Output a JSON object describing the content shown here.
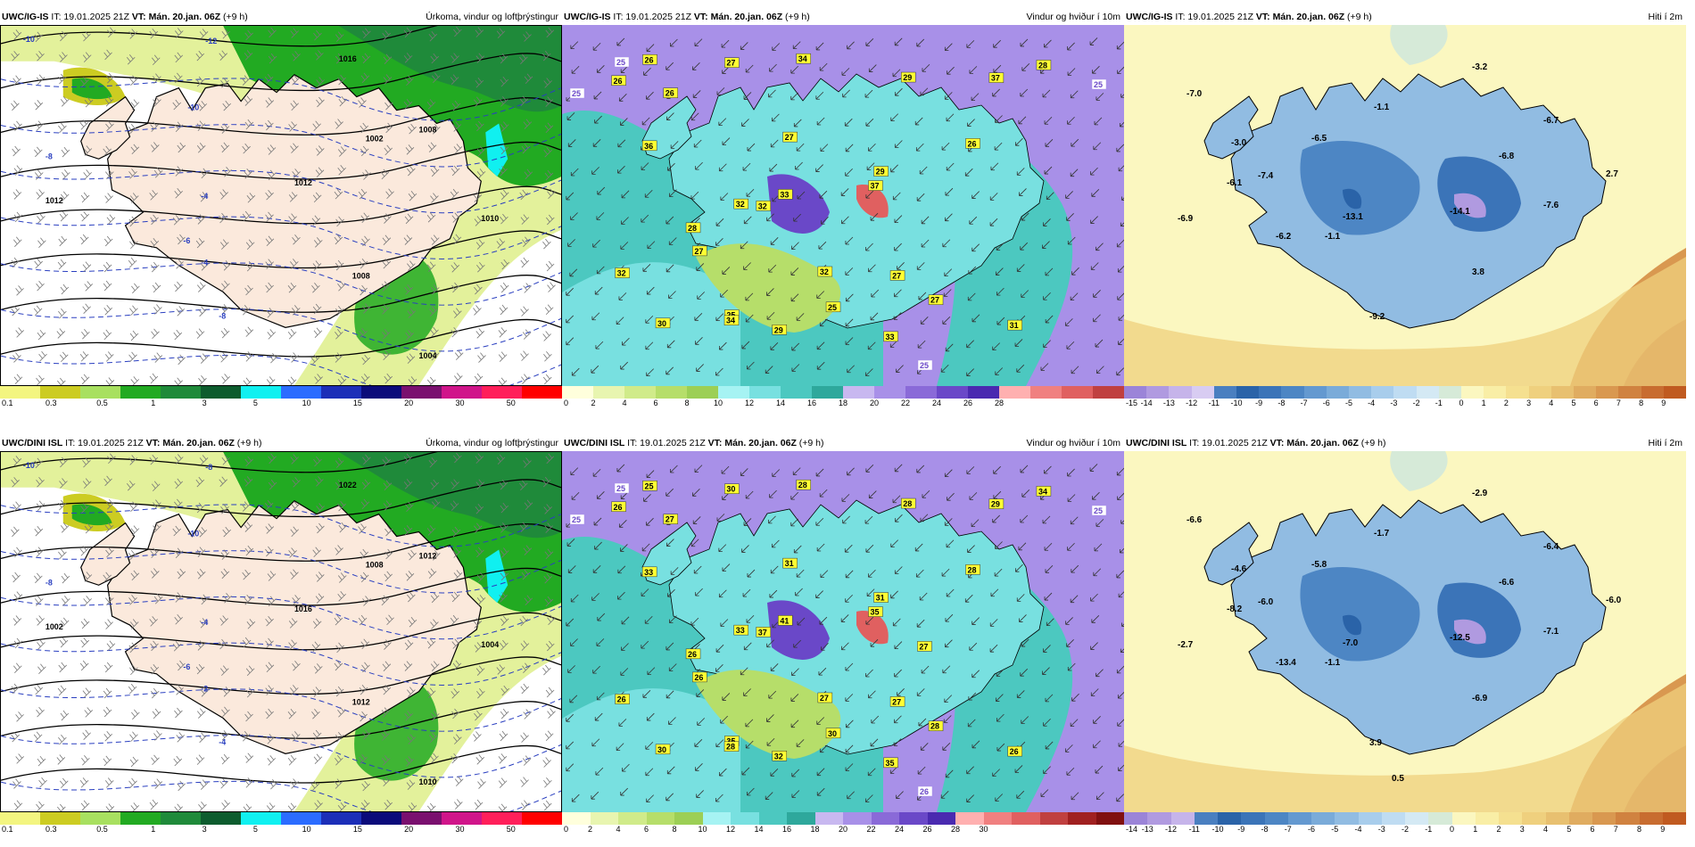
{
  "rows": [
    {
      "panels": [
        {
          "kind": "precip",
          "model": "UWC/IG-IS",
          "it_label": "IT: 19.01.2025 21Z",
          "vt_label": "VT: Mán. 20.jan. 06Z",
          "lead": "(+9 h)",
          "title": "Úrkoma, vindur og loftþrýstingur",
          "colors": [
            "#f3f580",
            "#cccc22",
            "#a8e060",
            "#22aa22",
            "#1f8a3a",
            "#0d5c2e",
            "#10f0f0",
            "#2b6cff",
            "#1c2fb8",
            "#0b0b7a",
            "#7a106f",
            "#d0158a",
            "#ff1f5a",
            "#ff0000"
          ],
          "ticks": [
            "0.1",
            "0.3",
            "0.5",
            "1",
            "3",
            "5",
            "10",
            "15",
            "20",
            "30",
            "50"
          ],
          "isobars": [
            "1016",
            "1012",
            "1008",
            "1004",
            "1002",
            "1010",
            "1012",
            "1008"
          ],
          "temps": [
            "-10",
            "-8",
            "-4",
            "-6",
            "-10",
            "-8",
            "-4",
            "-12"
          ]
        },
        {
          "kind": "wind",
          "model": "UWC/IG-IS",
          "it_label": "IT: 19.01.2025 21Z",
          "vt_label": "VT: Mán. 20.jan. 06Z",
          "lead": "(+9 h)",
          "title": "Vindur og hviður í 10m",
          "colors": [
            "#ffffdc",
            "#e8f5b0",
            "#d0eb8a",
            "#b6de6a",
            "#9ccf55",
            "#a6f3f3",
            "#78e0e0",
            "#4cc8c0",
            "#2ea89c",
            "#c8b8f0",
            "#a890e8",
            "#8a6ad8",
            "#6a48c8",
            "#4a2ab0",
            "#ffb0b0",
            "#f08080",
            "#e06060",
            "#c04040"
          ],
          "ticks": [
            "0",
            "2",
            "4",
            "6",
            "8",
            "10",
            "12",
            "14",
            "16",
            "18",
            "20",
            "22",
            "24",
            "26",
            "28"
          ],
          "gusts": [
            "29",
            "33",
            "25",
            "27",
            "27",
            "26",
            "32",
            "31",
            "34",
            "27",
            "37",
            "25",
            "33",
            "32",
            "29",
            "37",
            "36",
            "34",
            "32",
            "26",
            "27",
            "28",
            "29",
            "30",
            "26",
            "28",
            "32",
            "27",
            "26"
          ],
          "bands": [
            "25",
            "25",
            "25",
            "25"
          ]
        },
        {
          "kind": "temp",
          "model": "UWC/IG-IS",
          "it_label": "IT: 19.01.2025 21Z",
          "vt_label": "VT: Mán. 20.jan. 06Z",
          "lead": "(+9 h)",
          "title": "Hiti í 2m",
          "colors": [
            "#9b84d8",
            "#b09ae0",
            "#c6b4ea",
            "#d8ccf2",
            "#4a7fc0",
            "#2a63a8",
            "#3b74b8",
            "#4d86c4",
            "#6499d0",
            "#7aabd9",
            "#91bce2",
            "#a8cdec",
            "#bfdcf2",
            "#d4e9f4",
            "#d6ead8",
            "#fbf7c0",
            "#f9eea6",
            "#f5e090",
            "#efd07e",
            "#e8c070",
            "#e0ac60",
            "#d99850",
            "#d08240",
            "#c86c30",
            "#c05a20"
          ],
          "ticks": [
            "-15",
            "-14",
            "-13",
            "-12",
            "-11",
            "-10",
            "-9",
            "-8",
            "-7",
            "-6",
            "-5",
            "-4",
            "-3",
            "-2",
            "-1",
            "0",
            "1",
            "2",
            "3",
            "4",
            "5",
            "6",
            "7",
            "8",
            "9"
          ],
          "values": [
            "-7.0",
            "-3.0",
            "-6.5",
            "-1.1",
            "-3.2",
            "-6.7",
            "-6.8",
            "2.7",
            "-6.1",
            "-7.4",
            "-13.1",
            "-14.1",
            "-7.6",
            "-6.9",
            "-6.2",
            "-1.1",
            "3.8",
            "-9.2"
          ]
        }
      ]
    },
    {
      "panels": [
        {
          "kind": "precip",
          "model": "UWC/DINI ISL",
          "it_label": "IT: 19.01.2025 21Z",
          "vt_label": "VT: Mán. 20.jan. 06Z",
          "lead": "(+9 h)",
          "title": "Úrkoma, vindur og loftþrýstingur",
          "colors": [
            "#f3f580",
            "#cccc22",
            "#a8e060",
            "#22aa22",
            "#1f8a3a",
            "#0d5c2e",
            "#10f0f0",
            "#2b6cff",
            "#1c2fb8",
            "#0b0b7a",
            "#7a106f",
            "#d0158a",
            "#ff1f5a",
            "#ff0000"
          ],
          "ticks": [
            "0.1",
            "0.3",
            "0.5",
            "1",
            "3",
            "5",
            "10",
            "15",
            "20",
            "30",
            "50"
          ],
          "isobars": [
            "1022",
            "1016",
            "1012",
            "1010",
            "1008",
            "1004",
            "1002",
            "1012"
          ],
          "temps": [
            "-10",
            "-8",
            "-4",
            "-6",
            "-10",
            "-4",
            "-2",
            "-8"
          ]
        },
        {
          "kind": "wind",
          "model": "UWC/DINI ISL",
          "it_label": "IT: 19.01.2025 21Z",
          "vt_label": "VT: Mán. 20.jan. 06Z",
          "lead": "(+9 h)",
          "title": "Vindur og hviður í 10m",
          "colors": [
            "#ffffdc",
            "#e8f5b0",
            "#d0eb8a",
            "#b6de6a",
            "#9ccf55",
            "#a6f3f3",
            "#78e0e0",
            "#4cc8c0",
            "#2ea89c",
            "#c8b8f0",
            "#a890e8",
            "#8a6ad8",
            "#6a48c8",
            "#4a2ab0",
            "#ffb0b0",
            "#f08080",
            "#e06060",
            "#c04040",
            "#a02020",
            "#801010"
          ],
          "ticks": [
            "0",
            "2",
            "4",
            "6",
            "8",
            "10",
            "12",
            "14",
            "16",
            "18",
            "20",
            "22",
            "24",
            "26",
            "28",
            "30"
          ],
          "gusts": [
            "32",
            "35",
            "35",
            "28",
            "30",
            "27",
            "33",
            "26",
            "28",
            "31",
            "29",
            "30",
            "41",
            "27",
            "28",
            "35",
            "33",
            "28",
            "37",
            "26",
            "27",
            "34",
            "31",
            "30",
            "28",
            "26",
            "26",
            "26",
            "25",
            "27"
          ],
          "bands": [
            "25",
            "25",
            "25",
            "26"
          ]
        },
        {
          "kind": "temp",
          "model": "UWC/DINI ISL",
          "it_label": "IT: 19.01.2025 21Z",
          "vt_label": "VT: Mán. 20.jan. 06Z",
          "lead": "(+9 h)",
          "title": "Hiti í 2m",
          "colors": [
            "#9b84d8",
            "#b09ae0",
            "#c6b4ea",
            "#4a7fc0",
            "#2a63a8",
            "#3b74b8",
            "#4d86c4",
            "#6499d0",
            "#7aabd9",
            "#91bce2",
            "#a8cdec",
            "#bfdcf2",
            "#d4e9f4",
            "#d6ead8",
            "#fbf7c0",
            "#f9eea6",
            "#f5e090",
            "#efd07e",
            "#e8c070",
            "#e0ac60",
            "#d99850",
            "#d08240",
            "#c86c30",
            "#c05a20"
          ],
          "ticks": [
            "-14",
            "-13",
            "-12",
            "-11",
            "-10",
            "-9",
            "-8",
            "-7",
            "-6",
            "-5",
            "-4",
            "-3",
            "-2",
            "-1",
            "0",
            "1",
            "2",
            "3",
            "4",
            "5",
            "6",
            "7",
            "8",
            "9"
          ],
          "values": [
            "-6.6",
            "-4.6",
            "-5.8",
            "-1.7",
            "-2.9",
            "-6.4",
            "-6.6",
            "-6.0",
            "-8.2",
            "-6.0",
            "-7.0",
            "-12.5",
            "-7.1",
            "-2.7",
            "-13.4",
            "-1.1",
            "-6.9",
            "3.9",
            "0.5"
          ]
        }
      ]
    }
  ]
}
